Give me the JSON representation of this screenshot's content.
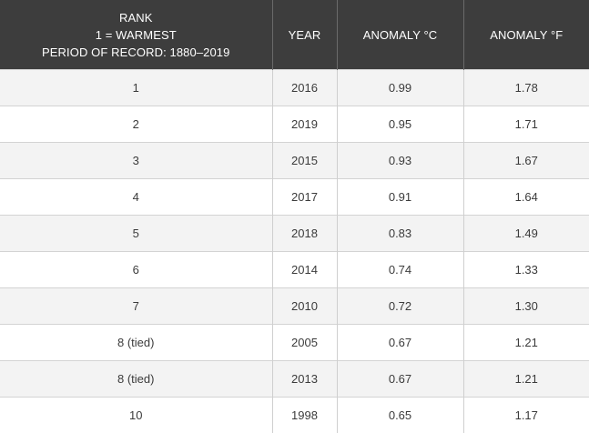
{
  "table": {
    "headers": {
      "rank": [
        "RANK",
        "1 = WARMEST",
        "PERIOD OF RECORD: 1880–2019"
      ],
      "year": "YEAR",
      "anomaly_c": "ANOMALY °C",
      "anomaly_f": "ANOMALY °F"
    },
    "rows": [
      {
        "rank": "1",
        "year": "2016",
        "anomaly_c": "0.99",
        "anomaly_f": "1.78"
      },
      {
        "rank": "2",
        "year": "2019",
        "anomaly_c": "0.95",
        "anomaly_f": "1.71"
      },
      {
        "rank": "3",
        "year": "2015",
        "anomaly_c": "0.93",
        "anomaly_f": "1.67"
      },
      {
        "rank": "4",
        "year": "2017",
        "anomaly_c": "0.91",
        "anomaly_f": "1.64"
      },
      {
        "rank": "5",
        "year": "2018",
        "anomaly_c": "0.83",
        "anomaly_f": "1.49"
      },
      {
        "rank": "6",
        "year": "2014",
        "anomaly_c": "0.74",
        "anomaly_f": "1.33"
      },
      {
        "rank": "7",
        "year": "2010",
        "anomaly_c": "0.72",
        "anomaly_f": "1.30"
      },
      {
        "rank": "8 (tied)",
        "year": "2005",
        "anomaly_c": "0.67",
        "anomaly_f": "1.21"
      },
      {
        "rank": "8 (tied)",
        "year": "2013",
        "anomaly_c": "0.67",
        "anomaly_f": "1.21"
      },
      {
        "rank": "10",
        "year": "1998",
        "anomaly_c": "0.65",
        "anomaly_f": "1.17"
      }
    ]
  }
}
